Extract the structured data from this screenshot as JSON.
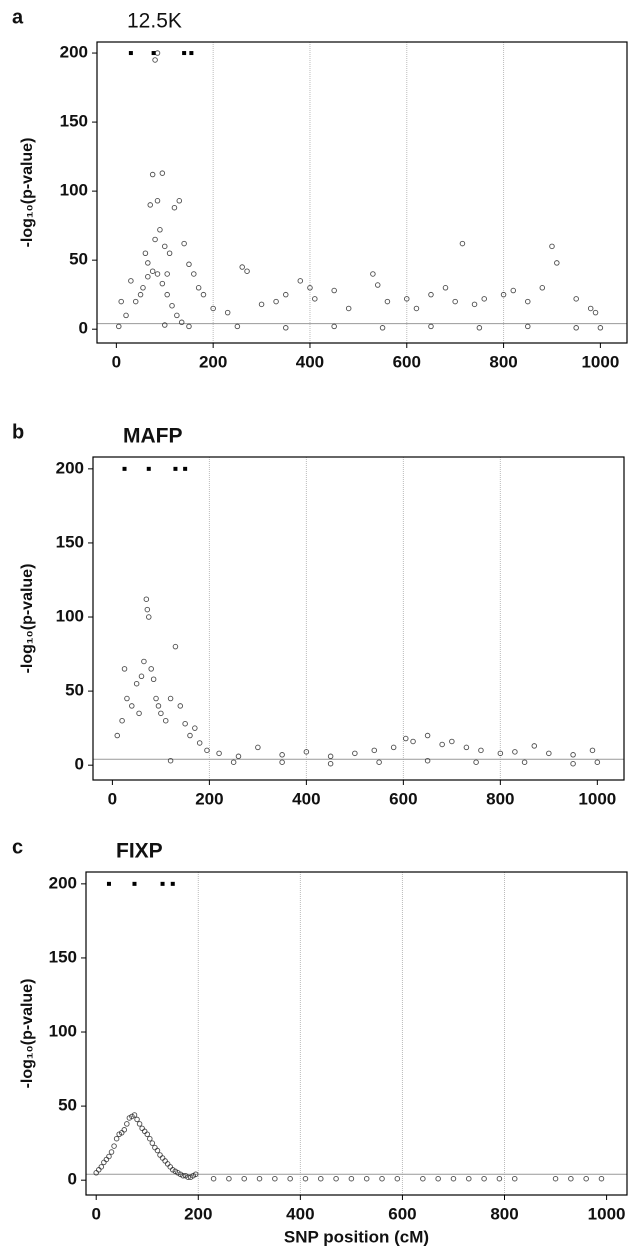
{
  "chart_data": [
    {
      "type": "scatter",
      "panel_label": "a",
      "title": "12.5K",
      "title_bold": false,
      "ylabel": "-log₁₀(p-value)",
      "x": [
        20,
        40,
        55,
        65,
        75,
        85,
        95,
        105,
        115,
        125,
        135,
        60,
        65,
        70,
        75,
        80,
        85,
        90,
        95,
        100,
        105,
        110,
        120,
        130,
        140,
        150,
        160,
        80,
        85,
        170,
        10,
        30,
        50,
        180,
        200,
        230,
        260,
        270,
        300,
        330,
        350,
        380,
        400,
        410,
        450,
        480,
        530,
        540,
        560,
        600,
        620,
        650,
        680,
        700,
        715,
        740,
        760,
        800,
        820,
        850,
        880,
        900,
        910,
        950,
        980,
        990,
        5,
        100,
        150,
        250,
        350,
        450,
        550,
        650,
        750,
        850,
        950,
        1000
      ],
      "y": [
        10,
        20,
        30,
        38,
        42,
        40,
        33,
        25,
        17,
        10,
        5,
        55,
        48,
        90,
        112,
        65,
        93,
        72,
        113,
        60,
        40,
        55,
        88,
        93,
        62,
        47,
        40,
        195,
        200,
        30,
        20,
        35,
        25,
        25,
        15,
        12,
        45,
        42,
        18,
        20,
        25,
        35,
        30,
        22,
        28,
        15,
        40,
        32,
        20,
        22,
        15,
        25,
        30,
        20,
        62,
        18,
        22,
        25,
        28,
        20,
        30,
        60,
        48,
        22,
        15,
        12,
        2,
        3,
        2,
        2,
        1,
        2,
        1,
        2,
        1,
        2,
        1,
        1
      ],
      "marker_x": [
        30,
        77,
        140,
        155
      ],
      "marker_y": [
        200,
        200,
        200,
        200
      ],
      "xlim": [
        -40,
        1055
      ],
      "ylim": [
        -10,
        208
      ],
      "xticks": [
        0,
        200,
        400,
        600,
        800,
        1000
      ],
      "yticks": [
        0,
        50,
        100,
        150,
        200
      ],
      "threshold": 4,
      "vgrid": true
    },
    {
      "type": "scatter",
      "panel_label": "b",
      "title": "MAFP",
      "title_bold": true,
      "ylabel": "-log₁₀(p-value)",
      "x": [
        10,
        20,
        25,
        30,
        40,
        50,
        55,
        60,
        65,
        70,
        72,
        75,
        80,
        85,
        90,
        95,
        100,
        110,
        120,
        130,
        140,
        150,
        160,
        170,
        180,
        195,
        220,
        260,
        300,
        350,
        400,
        450,
        500,
        540,
        580,
        605,
        620,
        650,
        680,
        700,
        730,
        760,
        800,
        830,
        870,
        900,
        950,
        990,
        120,
        250,
        350,
        450,
        550,
        650,
        750,
        850,
        950,
        1000
      ],
      "y": [
        20,
        30,
        65,
        45,
        40,
        55,
        35,
        60,
        70,
        112,
        105,
        100,
        65,
        58,
        45,
        40,
        35,
        30,
        45,
        80,
        40,
        28,
        20,
        25,
        15,
        10,
        8,
        6,
        12,
        7,
        9,
        6,
        8,
        10,
        12,
        18,
        16,
        20,
        14,
        16,
        12,
        10,
        8,
        9,
        13,
        8,
        7,
        10,
        3,
        2,
        2,
        1,
        2,
        3,
        2,
        2,
        1,
        2
      ],
      "marker_x": [
        25,
        75,
        130,
        150
      ],
      "marker_y": [
        200,
        200,
        200,
        200
      ],
      "xlim": [
        -40,
        1055
      ],
      "ylim": [
        -10,
        208
      ],
      "xticks": [
        0,
        200,
        400,
        600,
        800,
        1000
      ],
      "yticks": [
        0,
        50,
        100,
        150,
        200
      ],
      "threshold": 4,
      "vgrid": true
    },
    {
      "type": "scatter",
      "panel_label": "c",
      "title": "FIXP",
      "title_bold": true,
      "ylabel": "-log₁₀(p-value)",
      "xlabel": "SNP position (cM)",
      "x": [
        0,
        5,
        10,
        15,
        20,
        25,
        30,
        35,
        40,
        45,
        50,
        55,
        60,
        65,
        70,
        75,
        80,
        85,
        90,
        95,
        100,
        105,
        110,
        115,
        120,
        125,
        130,
        135,
        140,
        145,
        150,
        155,
        160,
        165,
        170,
        175,
        180,
        185,
        190,
        195,
        230,
        260,
        290,
        320,
        350,
        380,
        410,
        440,
        470,
        500,
        530,
        560,
        590,
        640,
        670,
        700,
        730,
        760,
        790,
        820,
        900,
        930,
        960,
        990
      ],
      "y": [
        5,
        7,
        9,
        12,
        14,
        16,
        19,
        23,
        28,
        31,
        32,
        34,
        38,
        42,
        43,
        44,
        41,
        38,
        35,
        33,
        31,
        28,
        25,
        22,
        20,
        17,
        15,
        13,
        11,
        9,
        7,
        6,
        5,
        4,
        3,
        3,
        2,
        2,
        3,
        4,
        1,
        1,
        1,
        1,
        1,
        1,
        1,
        1,
        1,
        1,
        1,
        1,
        1,
        1,
        1,
        1,
        1,
        1,
        1,
        1,
        1,
        1,
        1,
        1
      ],
      "marker_x": [
        25,
        75,
        130,
        150
      ],
      "marker_y": [
        200,
        200,
        200,
        200
      ],
      "xlim": [
        -20,
        1040
      ],
      "ylim": [
        -10,
        208
      ],
      "xticks": [
        0,
        200,
        400,
        600,
        800,
        1000
      ],
      "yticks": [
        0,
        50,
        100,
        150,
        200
      ],
      "threshold": 4,
      "vgrid": true
    }
  ]
}
